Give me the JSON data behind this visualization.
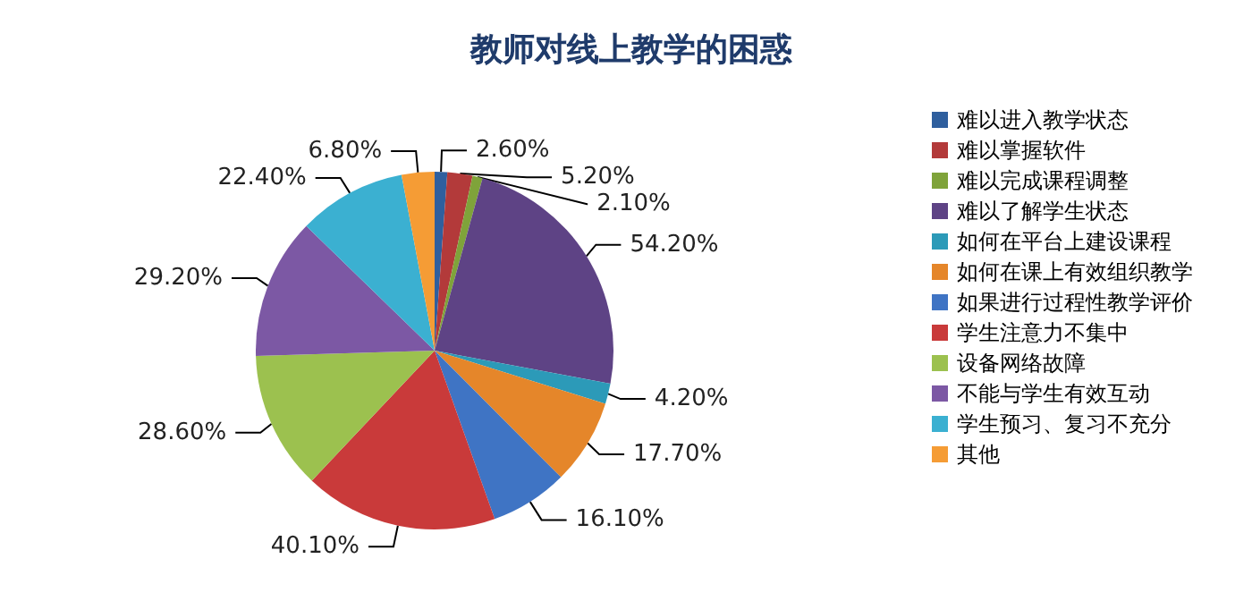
{
  "chart_data": {
    "type": "pie",
    "title": "教师对线上教学的困惑",
    "categories": [
      "难以进入教学状态",
      "难以掌握软件",
      "难以完成课程调整",
      "难以了解学生状态",
      "如何在平台上建设课程",
      "如何在课上有效组织教学",
      "如果进行过程性教学评价",
      "学生注意力不集中",
      "设备网络故障",
      "不能与学生有效互动",
      "学生预习、复习不充分",
      "其他"
    ],
    "values": [
      2.6,
      5.2,
      2.1,
      54.2,
      4.2,
      17.7,
      16.1,
      40.1,
      28.6,
      29.2,
      22.4,
      6.8
    ],
    "value_labels": [
      "2.60%",
      "5.20%",
      "2.10%",
      "54.20%",
      "4.20%",
      "17.70%",
      "16.10%",
      "40.10%",
      "28.60%",
      "29.20%",
      "22.40%",
      "6.80%"
    ],
    "colors": [
      "#2f5f9e",
      "#b33a3a",
      "#7fa33a",
      "#5e4385",
      "#2c9ab8",
      "#e5862a",
      "#3f74c4",
      "#c93a3a",
      "#9cc14f",
      "#7c58a4",
      "#3bb0d1",
      "#f59c35"
    ],
    "legend": "right"
  }
}
